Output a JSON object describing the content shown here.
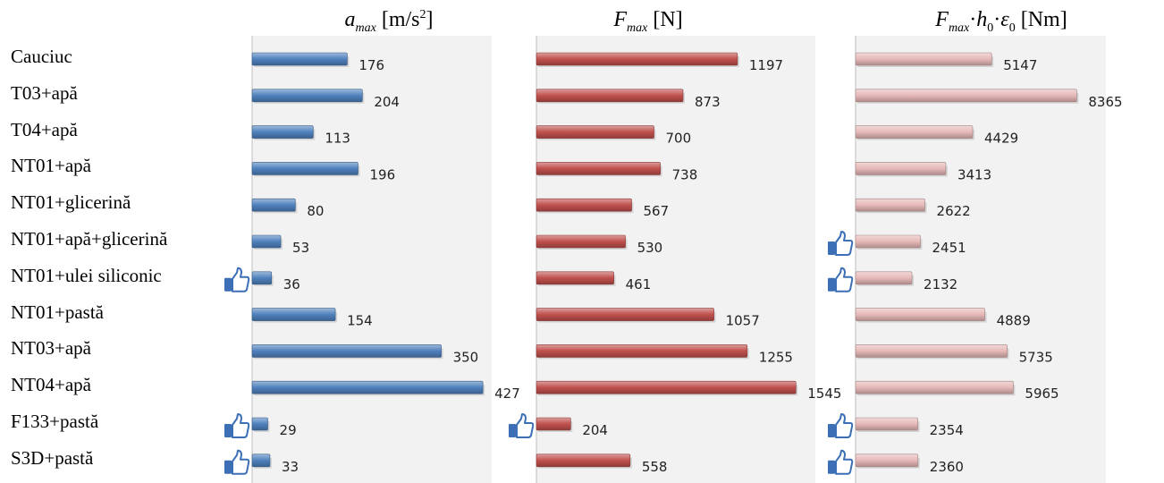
{
  "categories": [
    "Cauciuc",
    "T03+apă",
    "T04+apă",
    "NT01+apă",
    "NT01+glicerină",
    "NT01+apă+glicerină",
    "NT01+ulei siliconic",
    "NT01+pastă",
    "NT03+apă",
    "NT04+apă",
    "F133+pastă",
    "S3D+pastă"
  ],
  "titles": {
    "a_sym": "a",
    "a_sub": "max",
    "a_unit": " [m/s",
    "a_sup": "2",
    "a_close": "]",
    "f_sym": "F",
    "f_sub": "max",
    "f_unit": " [N]",
    "e_sym1": "F",
    "e_sub1": "max",
    "e_dot1": "·",
    "e_sym2": "h",
    "e_sub2": "0",
    "e_dot2": "·",
    "e_sym3": "ε",
    "e_sub3": "0",
    "e_unit": " [Nm]"
  },
  "colors": {
    "panel_bg": "#f2f2f2",
    "blue": "#4f81bd",
    "red": "#c0504d",
    "pink": "#e6b9b8",
    "thumb": "#3d6fb6"
  },
  "chart_data": [
    {
      "type": "bar",
      "orientation": "horizontal",
      "title": "a_max [m/s2]",
      "categories": [
        "Cauciuc",
        "T03+apă",
        "T04+apă",
        "NT01+apă",
        "NT01+glicerină",
        "NT01+apă+glicerină",
        "NT01+ulei siliconic",
        "NT01+pastă",
        "NT03+apă",
        "NT04+apă",
        "F133+pastă",
        "S3D+pastă"
      ],
      "values": [
        176,
        204,
        113,
        196,
        80,
        53,
        36,
        154,
        350,
        427,
        29,
        33
      ],
      "xlim": [
        0,
        440
      ],
      "color": "#4f81bd",
      "marked_categories": [
        "NT01+ulei siliconic",
        "F133+pastă",
        "S3D+pastă"
      ],
      "marker_icon": "thumbs-up-icon"
    },
    {
      "type": "bar",
      "orientation": "horizontal",
      "title": "F_max [N]",
      "categories": [
        "Cauciuc",
        "T03+apă",
        "T04+apă",
        "NT01+apă",
        "NT01+glicerină",
        "NT01+apă+glicerină",
        "NT01+ulei siliconic",
        "NT01+pastă",
        "NT03+apă",
        "NT04+apă",
        "F133+pastă",
        "S3D+pastă"
      ],
      "values": [
        1197,
        873,
        700,
        738,
        567,
        530,
        461,
        1057,
        1255,
        1545,
        204,
        558
      ],
      "xlim": [
        0,
        1650
      ],
      "color": "#c0504d",
      "marked_categories": [
        "F133+pastă"
      ],
      "marker_icon": "thumbs-up-icon"
    },
    {
      "type": "bar",
      "orientation": "horizontal",
      "title": "F_max·h_0·ε_0 [Nm]",
      "categories": [
        "Cauciuc",
        "T03+apă",
        "T04+apă",
        "NT01+apă",
        "NT01+glicerină",
        "NT01+apă+glicerină",
        "NT01+ulei siliconic",
        "NT01+pastă",
        "NT03+apă",
        "NT04+apă",
        "F133+pastă",
        "S3D+pastă"
      ],
      "values": [
        5147,
        8365,
        4429,
        3413,
        2622,
        2451,
        2132,
        4889,
        5735,
        5965,
        2354,
        2360
      ],
      "xlim": [
        0,
        9400
      ],
      "color": "#e6b9b8",
      "marked_categories": [
        "NT01+apă+glicerină",
        "NT01+ulei siliconic",
        "F133+pastă",
        "S3D+pastă"
      ],
      "marker_icon": "thumbs-up-icon"
    }
  ]
}
